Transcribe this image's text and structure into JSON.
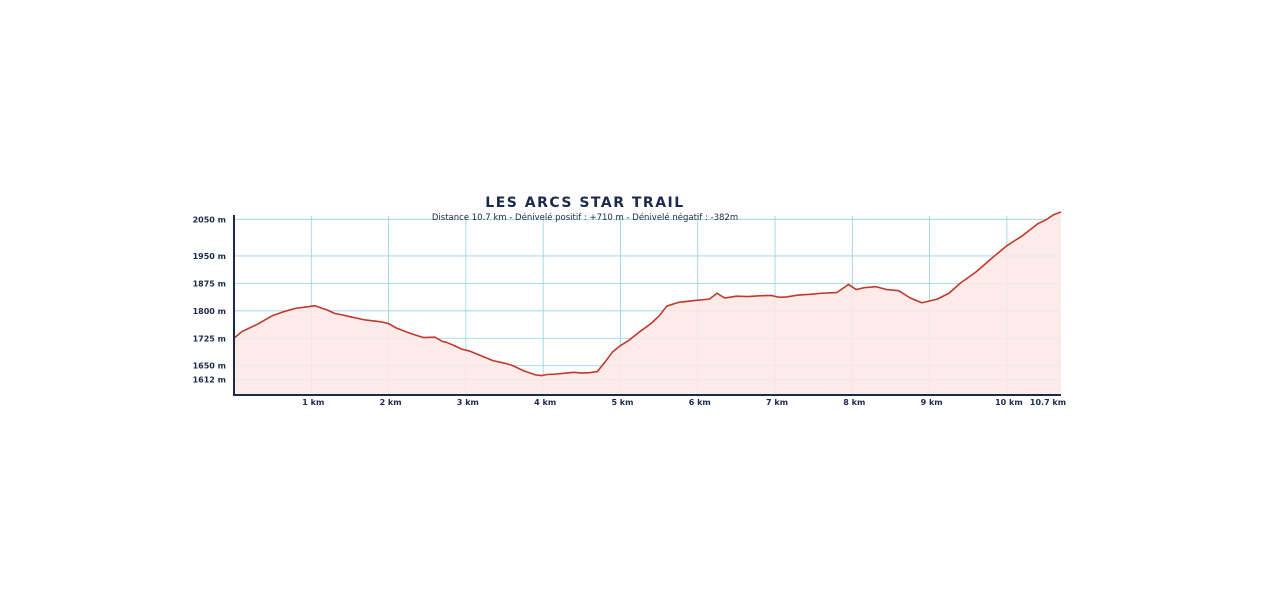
{
  "chart_data": {
    "type": "area",
    "title": "LES ARCS STAR TRAIL",
    "subtitle": "Distance 10.7 km - Dénivelé positif : +710 m - Dénivelé négatif : -382m",
    "xlabel": "",
    "ylabel": "",
    "xlim": [
      0,
      10.7
    ],
    "ylim": [
      1570,
      2070
    ],
    "grid": true,
    "x_ticks": [
      {
        "value": 1,
        "label": "1 km"
      },
      {
        "value": 2,
        "label": "2 km"
      },
      {
        "value": 3,
        "label": "3 km"
      },
      {
        "value": 4,
        "label": "4 km"
      },
      {
        "value": 5,
        "label": "5 km"
      },
      {
        "value": 6,
        "label": "6 km"
      },
      {
        "value": 7,
        "label": "7 km"
      },
      {
        "value": 8,
        "label": "8 km"
      },
      {
        "value": 9,
        "label": "9 km"
      },
      {
        "value": 10,
        "label": "10 km"
      },
      {
        "value": 10.7,
        "label": "10.7 km"
      }
    ],
    "y_ticks": [
      {
        "value": 1612,
        "label": "1612 m"
      },
      {
        "value": 1650,
        "label": "1650 m"
      },
      {
        "value": 1725,
        "label": "1725 m"
      },
      {
        "value": 1800,
        "label": "1800 m"
      },
      {
        "value": 1875,
        "label": "1875 m"
      },
      {
        "value": 1950,
        "label": "1950 m"
      },
      {
        "value": 2050,
        "label": "2050 m"
      }
    ],
    "series": [
      {
        "x": [
          0,
          0.1,
          0.3,
          0.5,
          0.65,
          0.8,
          0.95,
          1.05,
          1.15,
          1.2,
          1.3,
          1.4,
          1.5,
          1.7,
          1.9,
          2.0,
          2.1,
          2.2,
          2.3,
          2.45,
          2.6,
          2.7,
          2.75,
          2.85,
          2.95,
          3.05,
          3.2,
          3.35,
          3.5,
          3.6,
          3.75,
          3.9,
          3.98,
          4.05,
          4.15,
          4.3,
          4.4,
          4.5,
          4.6,
          4.7,
          4.8,
          4.9,
          5.0,
          5.1,
          5.25,
          5.4,
          5.5,
          5.6,
          5.75,
          5.95,
          6.15,
          6.25,
          6.35,
          6.5,
          6.65,
          6.8,
          6.95,
          7.05,
          7.15,
          7.3,
          7.45,
          7.6,
          7.8,
          7.95,
          8.05,
          8.15,
          8.3,
          8.45,
          8.6,
          8.75,
          8.9,
          9.1,
          9.25,
          9.4,
          9.6,
          9.8,
          10.0,
          10.2,
          10.4,
          10.5,
          10.6,
          10.7
        ],
        "values": [
          1725,
          1743,
          1763,
          1787,
          1798,
          1807,
          1811,
          1814,
          1806,
          1803,
          1793,
          1789,
          1784,
          1775,
          1770,
          1765,
          1753,
          1745,
          1737,
          1727,
          1728,
          1716,
          1714,
          1705,
          1695,
          1690,
          1677,
          1664,
          1657,
          1651,
          1636,
          1625,
          1623,
          1626,
          1627,
          1630,
          1632,
          1630,
          1631,
          1634,
          1660,
          1688,
          1705,
          1718,
          1743,
          1766,
          1786,
          1813,
          1823,
          1828,
          1832,
          1848,
          1835,
          1840,
          1839,
          1841,
          1842,
          1837,
          1838,
          1843,
          1845,
          1848,
          1850,
          1872,
          1858,
          1863,
          1866,
          1858,
          1855,
          1835,
          1822,
          1832,
          1848,
          1876,
          1906,
          1943,
          1978,
          2005,
          2038,
          2048,
          2062,
          2070
        ]
      }
    ],
    "colors": {
      "line": "#c0392b",
      "fill": "#fde8e6",
      "grid": "#8fd4e2",
      "axis": "#1b2a4a",
      "text": "#1b2a4a"
    }
  }
}
